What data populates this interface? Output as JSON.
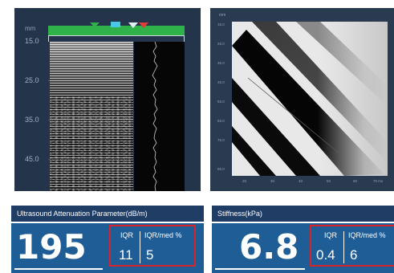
{
  "mmode_panel": {
    "unit_label": "mm",
    "depth_ticks": [
      "15.0",
      "25.0",
      "35.0",
      "45.0"
    ]
  },
  "elasto_panel": {
    "unit_label": "mm",
    "y_ticks": [
      "15.0",
      "25.0",
      "35.0",
      "45.0",
      "55.0",
      "65.0",
      "75.0",
      "85.0"
    ],
    "x_ticks": [
      "20",
      "30",
      "40",
      "50",
      "60",
      "70 ms"
    ]
  },
  "cap_result": {
    "header": "Ultrasound Attenuation Parameter(dB/m)",
    "value": "195",
    "iqr_label": "IQR",
    "iqr_med_label": "IQR/med %",
    "iqr_value": "11",
    "iqr_med_value": "5"
  },
  "stiffness_result": {
    "header": "Stiffness(kPa)",
    "value": "6.8",
    "iqr_label": "IQR",
    "iqr_med_label": "IQR/med %",
    "iqr_value": "0.4",
    "iqr_med_value": "6"
  },
  "colors": {
    "header_bg": "#203d66",
    "body_bg": "#1f5d96",
    "highlight_box": "#d7242b",
    "panel_bg": "#24344a",
    "toolbar_green": "#2fb24a"
  }
}
